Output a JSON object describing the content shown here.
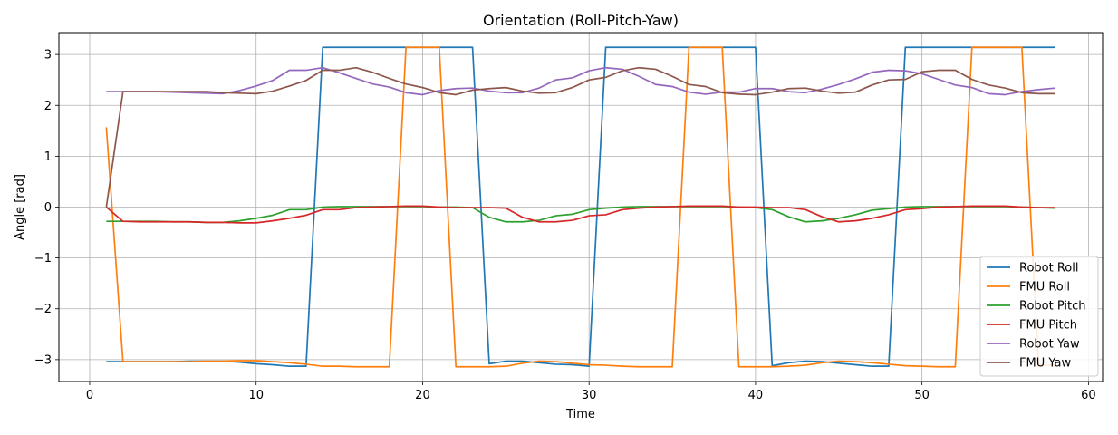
{
  "chart_data": {
    "type": "line",
    "title": "Orientation (Roll-Pitch-Yaw)",
    "xlabel": "Time",
    "ylabel": "Angle [rad]",
    "xlim": [
      -1.85,
      60.85
    ],
    "ylim": [
      -3.43,
      3.43
    ],
    "xticks": [
      0,
      10,
      20,
      30,
      40,
      50,
      60
    ],
    "yticks": [
      3,
      2,
      1,
      0,
      -1,
      -2,
      -3
    ],
    "ytick_labels": [
      "3",
      "2",
      "1",
      "0",
      "−1",
      "−2",
      "−3"
    ],
    "grid": true,
    "legend_position": "lower-right",
    "x": [
      1,
      2,
      3,
      4,
      5,
      6,
      7,
      8,
      9,
      10,
      11,
      12,
      13,
      14,
      15,
      16,
      17,
      18,
      19,
      20,
      21,
      22,
      23,
      24,
      25,
      26,
      27,
      28,
      29,
      30,
      31,
      32,
      33,
      34,
      35,
      36,
      37,
      38,
      39,
      40,
      41,
      42,
      43,
      44,
      45,
      46,
      47,
      48,
      49,
      50,
      51,
      52,
      53,
      54,
      55,
      56,
      57,
      58
    ],
    "series": [
      {
        "name": "Robot Roll",
        "color": "#1f77b4",
        "values": [
          -3.04,
          -3.04,
          -3.04,
          -3.04,
          -3.04,
          -3.03,
          -3.03,
          -3.03,
          -3.05,
          -3.08,
          -3.1,
          -3.13,
          -3.13,
          3.14,
          3.14,
          3.14,
          3.14,
          3.14,
          3.14,
          3.14,
          3.14,
          3.14,
          3.14,
          -3.08,
          -3.03,
          -3.03,
          -3.06,
          -3.09,
          -3.1,
          -3.13,
          3.14,
          3.14,
          3.14,
          3.14,
          3.14,
          3.14,
          3.14,
          3.14,
          3.14,
          3.14,
          -3.12,
          -3.06,
          -3.03,
          -3.04,
          -3.07,
          -3.1,
          -3.13,
          -3.13,
          3.14,
          3.14,
          3.14,
          3.14,
          3.14,
          3.14,
          3.14,
          3.14,
          3.14,
          3.14
        ]
      },
      {
        "name": "FMU Roll",
        "color": "#ff7f0e",
        "values": [
          1.57,
          -3.04,
          -3.04,
          -3.04,
          -3.04,
          -3.04,
          -3.03,
          -3.03,
          -3.02,
          -3.02,
          -3.04,
          -3.06,
          -3.09,
          -3.13,
          -3.13,
          -3.14,
          -3.14,
          -3.14,
          3.14,
          3.14,
          3.14,
          -3.14,
          -3.14,
          -3.14,
          -3.13,
          -3.07,
          -3.03,
          -3.04,
          -3.07,
          -3.1,
          -3.11,
          -3.13,
          -3.14,
          -3.14,
          -3.14,
          3.14,
          3.14,
          3.14,
          -3.14,
          -3.14,
          -3.14,
          -3.13,
          -3.11,
          -3.06,
          -3.03,
          -3.04,
          -3.06,
          -3.09,
          -3.12,
          -3.13,
          -3.14,
          -3.14,
          3.14,
          3.14,
          3.14,
          3.14,
          -3.1,
          -3.11
        ]
      },
      {
        "name": "Robot Pitch",
        "color": "#2ca02c",
        "values": [
          -0.28,
          -0.28,
          -0.28,
          -0.28,
          -0.29,
          -0.29,
          -0.3,
          -0.3,
          -0.27,
          -0.22,
          -0.16,
          -0.05,
          -0.05,
          0.0,
          0.01,
          0.01,
          0.01,
          0.01,
          0.01,
          0.01,
          0.0,
          0.0,
          -0.01,
          -0.2,
          -0.29,
          -0.29,
          -0.26,
          -0.17,
          -0.14,
          -0.05,
          -0.02,
          0.0,
          0.01,
          0.01,
          0.01,
          0.01,
          0.01,
          0.01,
          0.0,
          -0.01,
          -0.05,
          -0.19,
          -0.29,
          -0.27,
          -0.22,
          -0.15,
          -0.06,
          -0.03,
          0.0,
          0.01,
          0.01,
          0.01,
          0.01,
          0.01,
          0.01,
          0.0,
          -0.01,
          -0.02
        ]
      },
      {
        "name": "FMU Pitch",
        "color": "#d62728",
        "values": [
          0.0,
          -0.28,
          -0.29,
          -0.29,
          -0.29,
          -0.29,
          -0.3,
          -0.3,
          -0.31,
          -0.31,
          -0.27,
          -0.22,
          -0.16,
          -0.05,
          -0.05,
          -0.01,
          0.0,
          0.01,
          0.02,
          0.02,
          0.0,
          -0.01,
          -0.01,
          -0.01,
          -0.02,
          -0.2,
          -0.29,
          -0.29,
          -0.26,
          -0.17,
          -0.15,
          -0.05,
          -0.02,
          0.0,
          0.01,
          0.02,
          0.02,
          0.02,
          0.0,
          0.0,
          -0.01,
          -0.01,
          -0.05,
          -0.19,
          -0.29,
          -0.27,
          -0.22,
          -0.15,
          -0.05,
          -0.03,
          0.0,
          0.01,
          0.02,
          0.02,
          0.02,
          0.0,
          -0.01,
          -0.01
        ]
      },
      {
        "name": "Robot Yaw",
        "color": "#9467bd",
        "values": [
          2.27,
          2.27,
          2.27,
          2.27,
          2.26,
          2.25,
          2.24,
          2.23,
          2.29,
          2.38,
          2.49,
          2.69,
          2.69,
          2.74,
          2.64,
          2.53,
          2.42,
          2.36,
          2.25,
          2.21,
          2.29,
          2.33,
          2.34,
          2.28,
          2.25,
          2.25,
          2.34,
          2.5,
          2.54,
          2.68,
          2.74,
          2.71,
          2.57,
          2.41,
          2.37,
          2.26,
          2.22,
          2.26,
          2.26,
          2.33,
          2.33,
          2.27,
          2.25,
          2.32,
          2.41,
          2.52,
          2.65,
          2.69,
          2.68,
          2.62,
          2.51,
          2.4,
          2.35,
          2.23,
          2.21,
          2.27,
          2.31,
          2.34
        ]
      },
      {
        "name": "FMU Yaw",
        "color": "#8c564b",
        "values": [
          0.0,
          2.27,
          2.27,
          2.27,
          2.27,
          2.27,
          2.27,
          2.25,
          2.24,
          2.23,
          2.28,
          2.38,
          2.49,
          2.69,
          2.69,
          2.74,
          2.65,
          2.53,
          2.42,
          2.35,
          2.25,
          2.21,
          2.3,
          2.33,
          2.35,
          2.28,
          2.24,
          2.25,
          2.35,
          2.5,
          2.55,
          2.68,
          2.74,
          2.71,
          2.57,
          2.41,
          2.37,
          2.25,
          2.22,
          2.21,
          2.26,
          2.33,
          2.34,
          2.28,
          2.24,
          2.26,
          2.4,
          2.5,
          2.51,
          2.66,
          2.69,
          2.69,
          2.51,
          2.4,
          2.34,
          2.25,
          2.23,
          2.23
        ]
      }
    ]
  }
}
